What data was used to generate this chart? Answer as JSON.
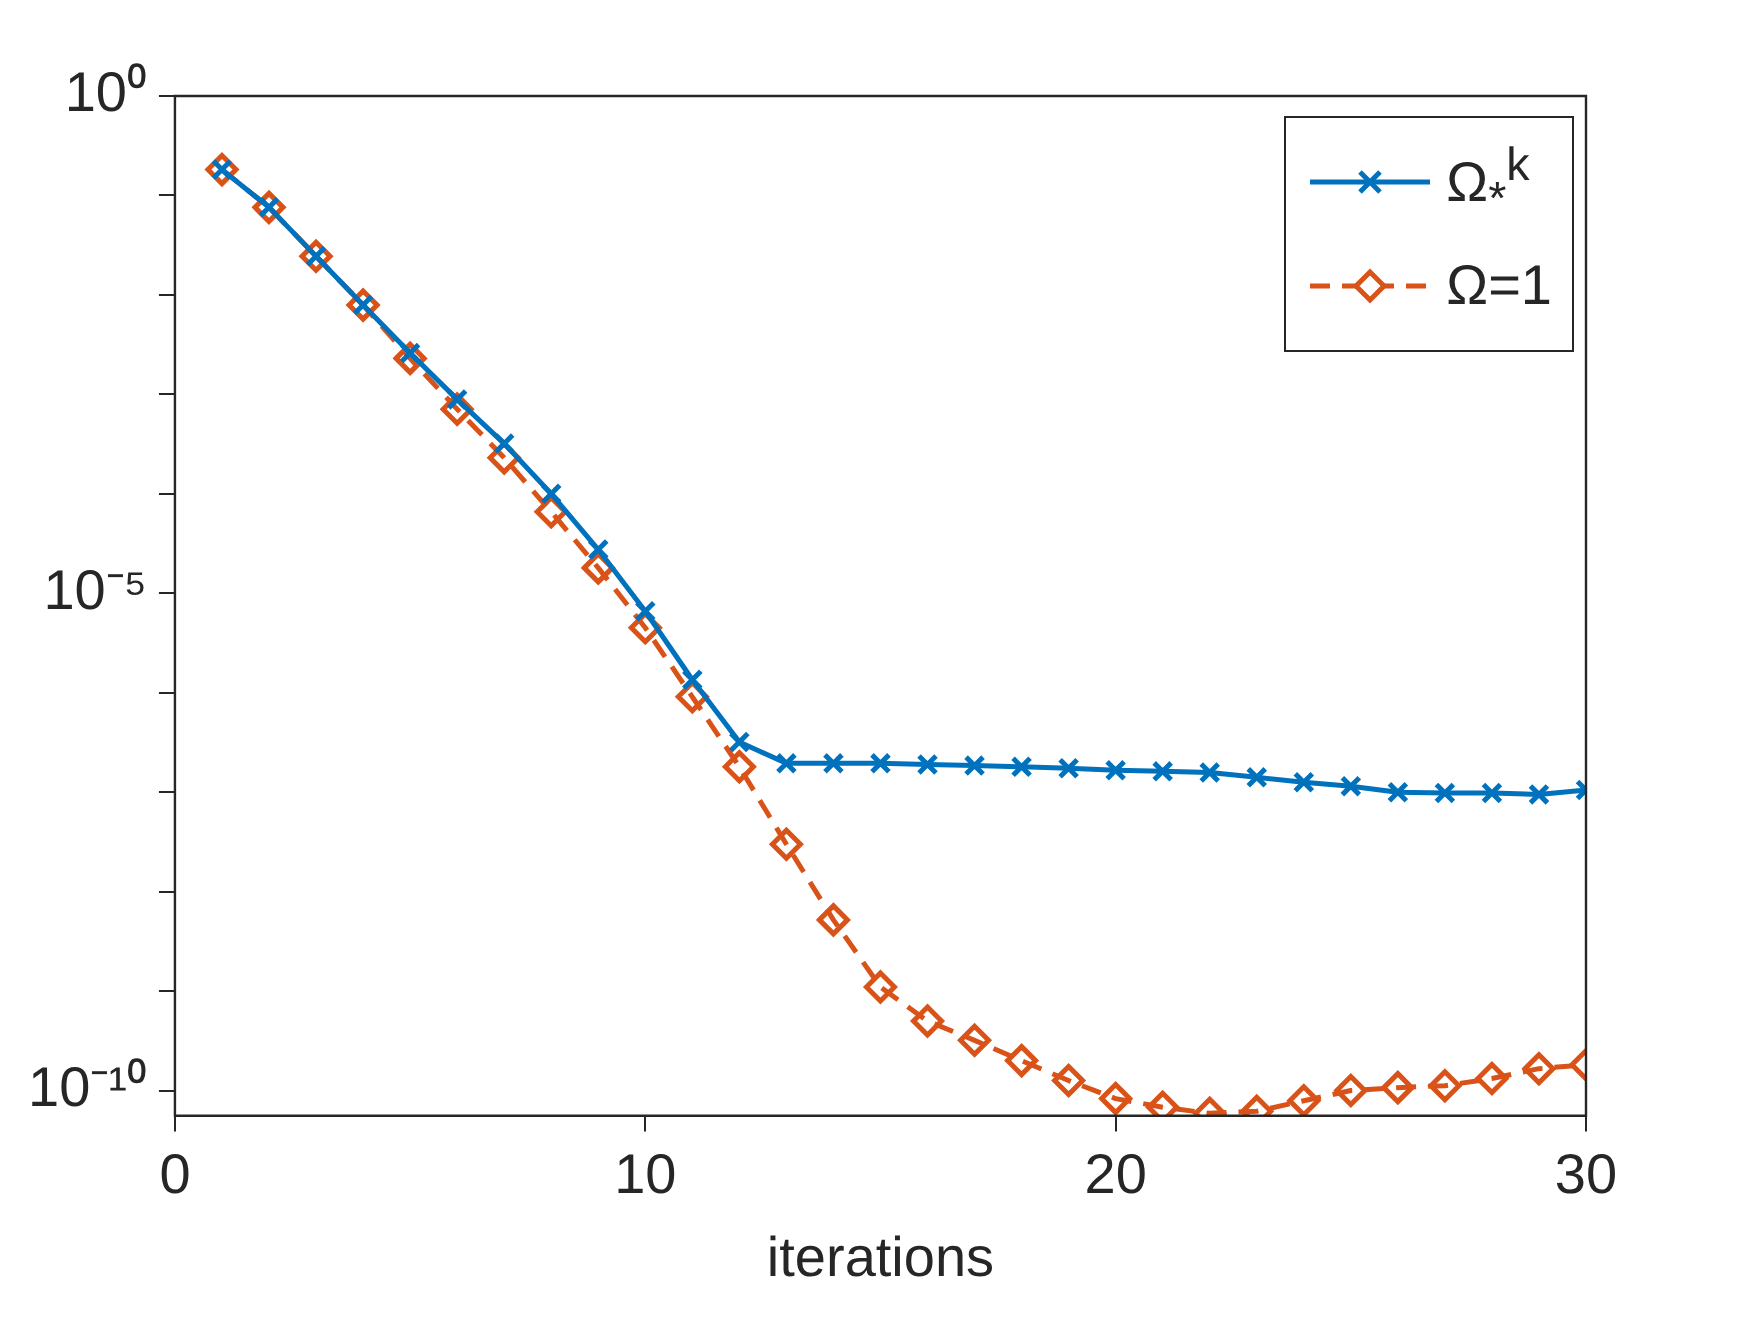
{
  "chart_data": {
    "type": "line",
    "xlabel": "iterations",
    "x": [
      1,
      2,
      3,
      4,
      5,
      6,
      7,
      8,
      9,
      10,
      11,
      12,
      13,
      14,
      15,
      16,
      17,
      18,
      19,
      20,
      21,
      22,
      23,
      24,
      25,
      26,
      27,
      28,
      29,
      30
    ],
    "series": [
      {
        "name": "Ω$_{*}$$^{k}$",
        "color": "#0072bd",
        "marker": "cross",
        "line_style": "solid",
        "values": [
          0.182,
          0.0759,
          0.0245,
          0.0079,
          0.0026,
          0.00089,
          0.00032,
          0.0001,
          2.75e-05,
          6.6e-06,
          1.35e-06,
          3.2e-07,
          1.95e-07,
          1.95e-07,
          1.95e-07,
          1.9e-07,
          1.85e-07,
          1.8e-07,
          1.74e-07,
          1.66e-07,
          1.62e-07,
          1.58e-07,
          1.41e-07,
          1.26e-07,
          1.15e-07,
          1e-07,
          9.8e-08,
          9.8e-08,
          9.5e-08,
          1.05e-07
        ]
      },
      {
        "name": "Ω=1",
        "color": "#d95319",
        "marker": "diamond",
        "line_style": "dashed",
        "values": [
          0.182,
          0.0759,
          0.0245,
          0.0079,
          0.0023,
          0.00071,
          0.00023,
          6.6e-05,
          1.8e-05,
          4.5e-06,
          9.1e-07,
          1.8e-07,
          3e-08,
          5.2e-09,
          1.1e-09,
          5e-10,
          3.2e-10,
          2e-10,
          1.26e-10,
          8.3e-11,
          6.8e-11,
          5.9e-11,
          6.2e-11,
          7.9e-11,
          1e-10,
          1.07e-10,
          1.12e-10,
          1.32e-10,
          1.66e-10,
          1.82e-10
        ]
      }
    ],
    "xlim": [
      0,
      30
    ],
    "xticks": [
      0,
      10,
      20,
      30
    ],
    "log": "y",
    "ylim": [
      5.6e-11,
      1
    ],
    "yticks": [
      {
        "value": 1,
        "label": "10⁰"
      },
      {
        "value": 0.1,
        "label": null
      },
      {
        "value": 0.01,
        "label": null
      },
      {
        "value": 0.001,
        "label": null
      },
      {
        "value": 0.0001,
        "label": null
      },
      {
        "value": 1e-05,
        "label": "10⁻⁵"
      },
      {
        "value": 1e-06,
        "label": null
      },
      {
        "value": 1e-07,
        "label": null
      },
      {
        "value": 1e-08,
        "label": null
      },
      {
        "value": 1e-09,
        "label": null
      },
      {
        "value": 1e-10,
        "label": "10⁻¹⁰"
      }
    ],
    "grid": false,
    "legend": "top right"
  }
}
